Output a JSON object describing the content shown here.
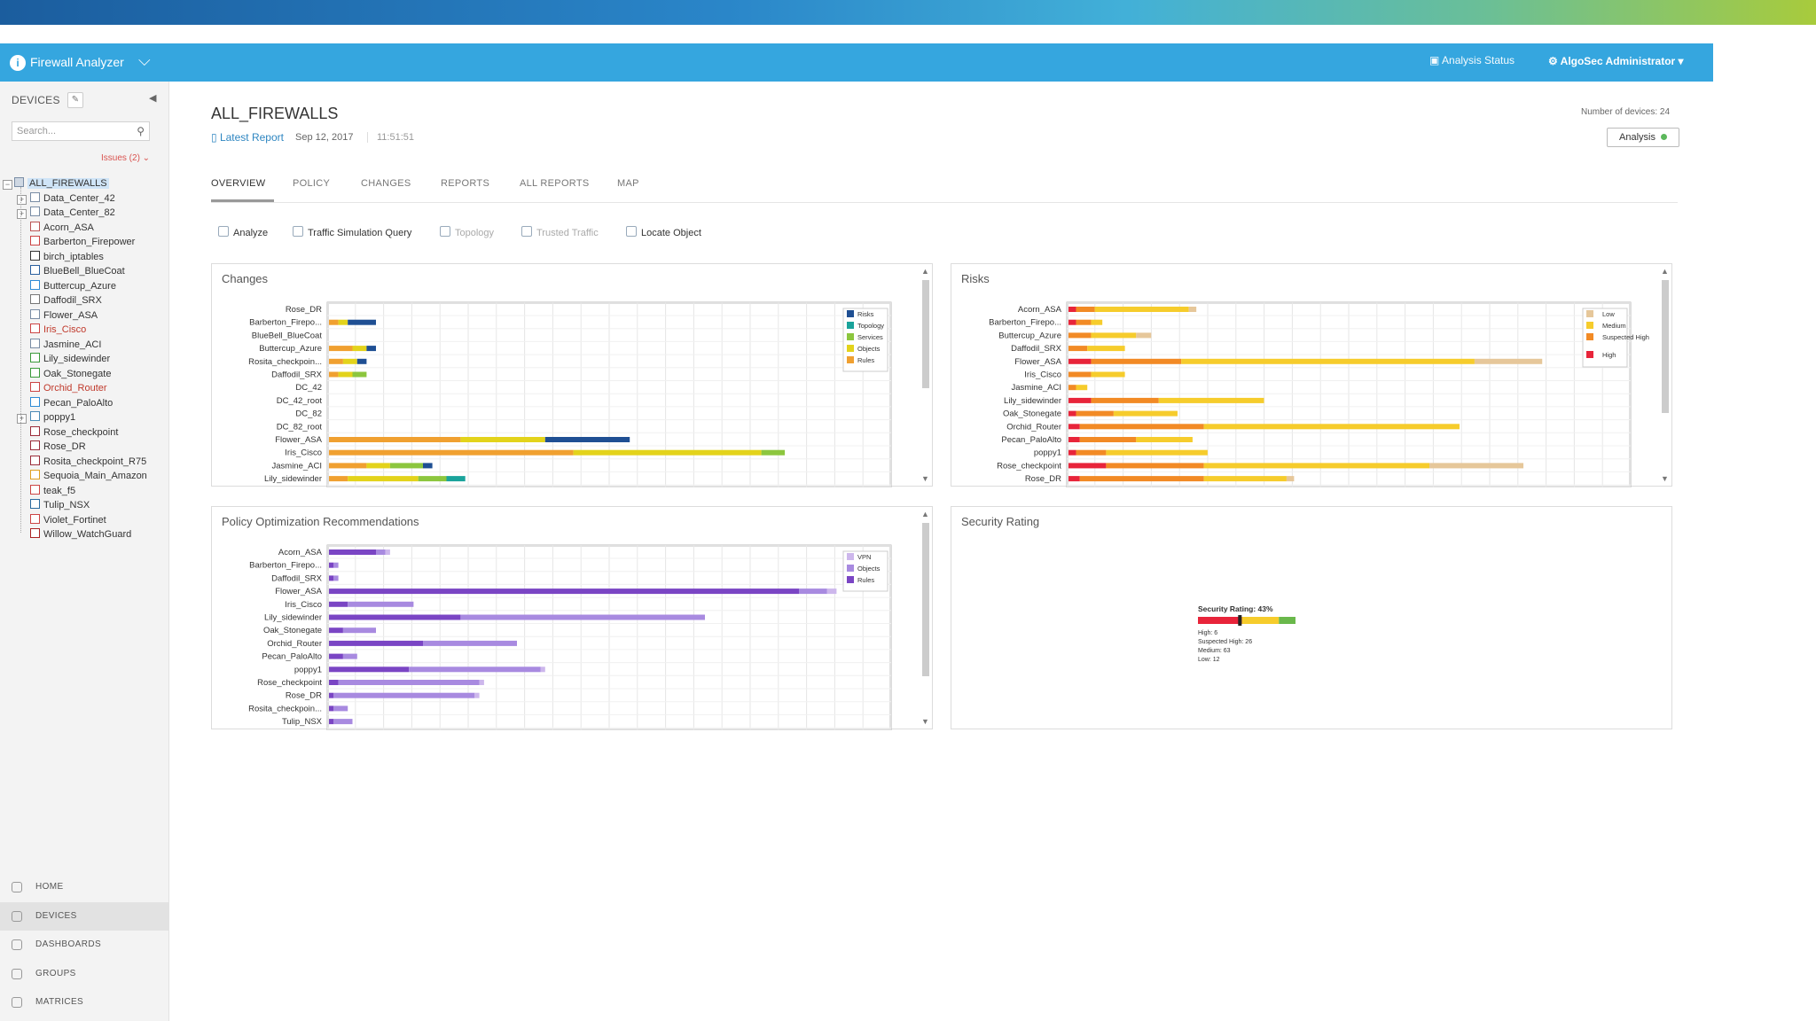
{
  "app": {
    "title": "Firewall Analyzer",
    "analysis_status": "Analysis Status",
    "user_menu": "⚙ AlgoSec Administrator ▾"
  },
  "sidebar": {
    "header": "DEVICES",
    "search_placeholder": "Search...",
    "issues": "Issues (2)",
    "tree": [
      {
        "label": "ALL_FIREWALLS",
        "selected": true
      },
      {
        "label": "Data_Center_42"
      },
      {
        "label": "Data_Center_82"
      },
      {
        "label": "Acorn_ASA"
      },
      {
        "label": "Barberton_Firepower"
      },
      {
        "label": "birch_iptables"
      },
      {
        "label": "BlueBell_BlueCoat"
      },
      {
        "label": "Buttercup_Azure"
      },
      {
        "label": "Daffodil_SRX"
      },
      {
        "label": "Flower_ASA"
      },
      {
        "label": "Iris_Cisco",
        "alert": true
      },
      {
        "label": "Jasmine_ACI"
      },
      {
        "label": "Lily_sidewinder"
      },
      {
        "label": "Oak_Stonegate"
      },
      {
        "label": "Orchid_Router",
        "alert": true
      },
      {
        "label": "Pecan_PaloAlto"
      },
      {
        "label": "poppy1"
      },
      {
        "label": "Rose_checkpoint"
      },
      {
        "label": "Rose_DR"
      },
      {
        "label": "Rosita_checkpoint_R75"
      },
      {
        "label": "Sequoia_Main_Amazon"
      },
      {
        "label": "teak_f5"
      },
      {
        "label": "Tulip_NSX"
      },
      {
        "label": "Violet_Fortinet"
      },
      {
        "label": "Willow_WatchGuard"
      }
    ],
    "nav": [
      {
        "label": "HOME"
      },
      {
        "label": "DEVICES",
        "active": true
      },
      {
        "label": "DASHBOARDS"
      },
      {
        "label": "GROUPS"
      },
      {
        "label": "MATRICES"
      }
    ]
  },
  "page": {
    "title": "ALL_FIREWALLS",
    "latest_report": "Latest Report",
    "date": "Sep 12, 2017",
    "time": "11:51:51",
    "device_count": "Number of devices: 24",
    "analysis_button": "Analysis",
    "tabs": [
      {
        "label": "OVERVIEW",
        "active": true
      },
      {
        "label": "POLICY"
      },
      {
        "label": "CHANGES"
      },
      {
        "label": "REPORTS"
      },
      {
        "label": "ALL REPORTS"
      },
      {
        "label": "MAP"
      }
    ],
    "tools": [
      {
        "label": "Analyze"
      },
      {
        "label": "Traffic Simulation Query"
      },
      {
        "label": "Topology",
        "disabled": true
      },
      {
        "label": "Trusted Traffic",
        "disabled": true
      },
      {
        "label": "Locate Object"
      }
    ]
  },
  "colors": {
    "appbar": "#35a6df",
    "risks": "#1f4f93",
    "topology": "#1aa39b",
    "services": "#8cc63e",
    "objects": "#e3d31b",
    "rules": "#f0a030",
    "low": "#e6c79a",
    "medium": "#f6cc2c",
    "suspected_high": "#f28a25",
    "high": "#e8243a",
    "vpn": "#cdb7ec",
    "policy_objects": "#a88ae0",
    "policy_rules": "#7a45c4"
  },
  "chart_data": [
    {
      "panel": "Changes",
      "type": "bar",
      "orientation": "horizontal",
      "stacked": true,
      "categories": [
        "Rose_DR",
        "Barberton_Firepo...",
        "BlueBell_BlueCoat",
        "Buttercup_Azure",
        "Rosita_checkpoin...",
        "Daffodil_SRX",
        "DC_42",
        "DC_42_root",
        "DC_82",
        "DC_82_root",
        "Flower_ASA",
        "Iris_Cisco",
        "Jasmine_ACI",
        "Lily_sidewinder"
      ],
      "legend": [
        "Risks",
        "Topology",
        "Services",
        "Objects",
        "Rules"
      ],
      "legend_position": "top-right",
      "series": [
        {
          "name": "Rules",
          "color_key": "rules",
          "values": [
            0,
            2,
            0,
            5,
            3,
            2,
            0,
            0,
            0,
            0,
            28,
            52,
            8,
            4
          ]
        },
        {
          "name": "Objects",
          "color_key": "objects",
          "values": [
            0,
            2,
            0,
            3,
            3,
            3,
            0,
            0,
            0,
            0,
            18,
            40,
            5,
            15
          ]
        },
        {
          "name": "Services",
          "color_key": "services",
          "values": [
            0,
            0,
            0,
            0,
            0,
            3,
            0,
            0,
            0,
            0,
            0,
            5,
            7,
            6
          ]
        },
        {
          "name": "Topology",
          "color_key": "topology",
          "values": [
            0,
            0,
            0,
            0,
            0,
            0,
            0,
            0,
            0,
            0,
            0,
            0,
            0,
            4
          ]
        },
        {
          "name": "Risks",
          "color_key": "risks",
          "values": [
            0,
            6,
            0,
            2,
            2,
            0,
            0,
            0,
            0,
            0,
            18,
            0,
            2,
            0
          ]
        }
      ],
      "xlim": [
        0,
        120
      ]
    },
    {
      "panel": "Risks",
      "type": "bar",
      "orientation": "horizontal",
      "stacked": true,
      "categories": [
        "Acorn_ASA",
        "Barberton_Firepo...",
        "Buttercup_Azure",
        "Daffodil_SRX",
        "Flower_ASA",
        "Iris_Cisco",
        "Jasmine_ACI",
        "Lily_sidewinder",
        "Oak_Stonegate",
        "Orchid_Router",
        "Pecan_PaloAlto",
        "poppy1",
        "Rose_checkpoint",
        "Rose_DR"
      ],
      "legend": [
        "Low",
        "Medium",
        "Suspected High",
        "High"
      ],
      "legend_position": "top-right",
      "series": [
        {
          "name": "High",
          "color_key": "high",
          "values": [
            2,
            2,
            0,
            0,
            6,
            0,
            0,
            6,
            2,
            3,
            3,
            2,
            10,
            3
          ]
        },
        {
          "name": "Suspected High",
          "color_key": "suspected_high",
          "values": [
            5,
            4,
            6,
            5,
            24,
            6,
            2,
            18,
            10,
            33,
            15,
            8,
            26,
            33
          ]
        },
        {
          "name": "Medium",
          "color_key": "medium",
          "values": [
            25,
            3,
            12,
            10,
            78,
            9,
            3,
            28,
            17,
            68,
            15,
            27,
            60,
            22
          ]
        },
        {
          "name": "Low",
          "color_key": "low",
          "values": [
            2,
            0,
            4,
            0,
            18,
            0,
            0,
            0,
            0,
            0,
            0,
            0,
            25,
            2
          ]
        }
      ],
      "xlim": [
        0,
        150
      ]
    },
    {
      "panel": "Policy Optimization Recommendations",
      "type": "bar",
      "orientation": "horizontal",
      "stacked": true,
      "categories": [
        "Acorn_ASA",
        "Barberton_Firepo...",
        "Daffodil_SRX",
        "Flower_ASA",
        "Iris_Cisco",
        "Lily_sidewinder",
        "Oak_Stonegate",
        "Orchid_Router",
        "Pecan_PaloAlto",
        "poppy1",
        "Rose_checkpoint",
        "Rose_DR",
        "Rosita_checkpoin...",
        "Tulip_NSX"
      ],
      "legend": [
        "VPN",
        "Objects",
        "Rules"
      ],
      "legend_position": "top-right",
      "series": [
        {
          "name": "Rules",
          "color_key": "policy_rules",
          "values": [
            10,
            1,
            1,
            100,
            4,
            28,
            3,
            20,
            3,
            17,
            2,
            1,
            1,
            1
          ]
        },
        {
          "name": "Objects",
          "color_key": "policy_objects",
          "values": [
            2,
            1,
            1,
            6,
            14,
            52,
            7,
            20,
            3,
            28,
            30,
            30,
            3,
            4
          ]
        },
        {
          "name": "VPN",
          "color_key": "vpn",
          "values": [
            1,
            0,
            0,
            2,
            0,
            0,
            0,
            0,
            0,
            1,
            1,
            1,
            0,
            0
          ]
        }
      ],
      "xlim": [
        0,
        120
      ]
    },
    {
      "panel": "Security Rating",
      "type": "bar",
      "title": "Security Rating: 43%",
      "rating": 43,
      "lines": [
        "High: 6",
        "Suspected High: 26",
        "Medium: 63",
        "Low: 12"
      ],
      "scale_segments": [
        {
          "color_key": "high",
          "fraction": 0.45
        },
        {
          "color_key": "medium",
          "fraction": 0.38
        },
        {
          "color": "#6ab84b",
          "fraction": 0.17
        }
      ]
    }
  ]
}
